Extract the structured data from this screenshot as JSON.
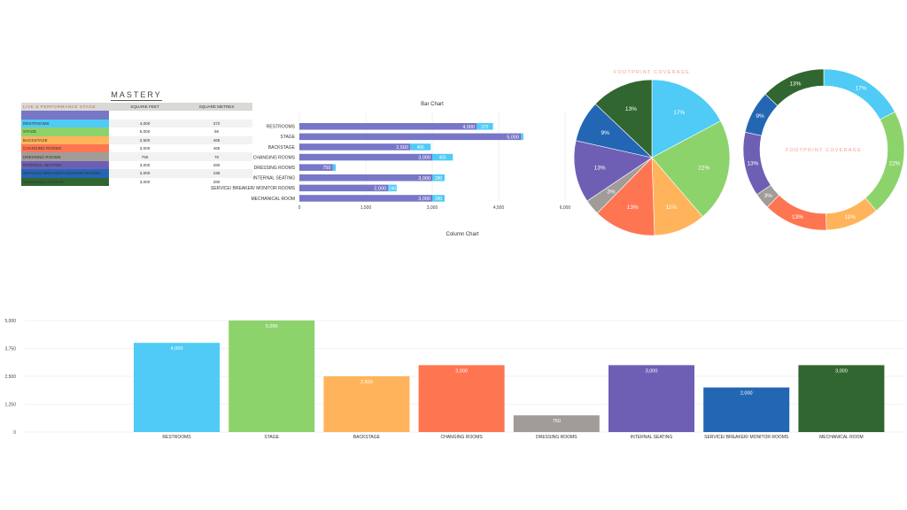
{
  "colors": {
    "restrooms": "#4fcbf6",
    "stage": "#8cd36b",
    "backstage": "#ffb45c",
    "changing_rooms": "#fe7552",
    "dressing_rooms": "#a19c97",
    "internal_seating": "#6e5fb5",
    "service": "#2367b4",
    "mechanical": "#326630",
    "bar_main": "#7776c7",
    "bar_secondary": "#4fcbf6"
  },
  "table": {
    "title": "MASTERY",
    "header": [
      "LIVE & PERFORMANCE STAGE",
      "SQUARE FEET",
      "SQUARE METRES"
    ],
    "header_color": "#7776c7",
    "rows": [
      {
        "name": "RESTROOMS",
        "sqft": "4,000",
        "sqm": "372",
        "color": "#4fcbf6"
      },
      {
        "name": "STAGE",
        "sqft": "5,000",
        "sqm": "56",
        "color": "#8cd36b"
      },
      {
        "name": "BACKSTAGE",
        "sqft": "2,500",
        "sqm": "465",
        "color": "#ffb45c"
      },
      {
        "name": "CHANGING ROOMS",
        "sqft": "3,000",
        "sqm": "465",
        "color": "#fe7552"
      },
      {
        "name": "DRESSING ROOMS",
        "sqft": "750",
        "sqm": "70",
        "color": "#a19c97"
      },
      {
        "name": "INTERNAL SEATING",
        "sqft": "3,000",
        "sqm": "280",
        "color": "#6e5fb5"
      },
      {
        "name": "SERVICE/ BREAKER/ MONITOR ROOMS",
        "sqft": "2,000",
        "sqm": "196",
        "color": "#2367b4"
      },
      {
        "name": "MECHANICAL ROOM",
        "sqft": "3,000",
        "sqm": "280",
        "color": "#326630"
      }
    ]
  },
  "chart_data": [
    {
      "type": "bar",
      "orientation": "horizontal",
      "stacked": true,
      "title": "Bar Chart",
      "subtitle": "Column Chart",
      "categories": [
        "RESTROOMS",
        "STAGE",
        "BACKSTAGE",
        "CHANGING ROOMS",
        "DRESSING ROOMS",
        "INTERNAL SEATING",
        "SERVICE/ BREAKER/ MONITOR ROOMS",
        "MECHANICAL ROOM"
      ],
      "series": [
        {
          "values": [
            4000,
            5000,
            2500,
            3000,
            750,
            3000,
            2000,
            3000
          ],
          "labels": [
            "4,000",
            "5,000",
            "2,500",
            "3,000",
            "750",
            "3,000",
            "2,000",
            "3,000"
          ]
        },
        {
          "values": [
            372,
            56,
            465,
            465,
            70,
            280,
            196,
            280
          ],
          "labels": [
            "372",
            "",
            "465",
            "465",
            "",
            "280",
            "196",
            "280"
          ]
        }
      ],
      "xlim": [
        0,
        6000
      ],
      "xticks": [
        "0",
        "1,500",
        "3,000",
        "4,500",
        "6,000"
      ],
      "grid": true
    },
    {
      "type": "pie",
      "title": "FOOTPRINT COVERAGE",
      "categories": [
        "RESTROOMS",
        "STAGE",
        "BACKSTAGE",
        "CHANGING ROOMS",
        "DRESSING ROOMS",
        "INTERNAL SEATING",
        "SERVICE/ BREAKER/ MONITOR ROOMS",
        "MECHANICAL ROOM"
      ],
      "values": [
        4000,
        5000,
        2500,
        3000,
        750,
        3000,
        2000,
        3000
      ],
      "labels": [
        "17%",
        "22%",
        "11%",
        "13%",
        "3%",
        "13%",
        "9%",
        "13%"
      ]
    },
    {
      "type": "pie",
      "donut": true,
      "title": "FOOTPRINT COVERAGE",
      "categories": [
        "RESTROOMS",
        "STAGE",
        "BACKSTAGE",
        "CHANGING ROOMS",
        "DRESSING ROOMS",
        "INTERNAL SEATING",
        "SERVICE/ BREAKER/ MONITOR ROOMS",
        "MECHANICAL ROOM"
      ],
      "values": [
        4000,
        5000,
        2500,
        3000,
        750,
        3000,
        2000,
        3000
      ],
      "labels": [
        "17%",
        "22%",
        "11%",
        "13%",
        "3%",
        "13%",
        "9%",
        "13%"
      ]
    },
    {
      "type": "bar",
      "orientation": "vertical",
      "categories": [
        "RESTROOMS",
        "STAGE",
        "BACKSTAGE",
        "CHANGING ROOMS",
        "DRESSING ROOMS",
        "INTERNAL SEATING",
        "SERVICE/ BREAKER/ MONITOR ROOMS",
        "MECHANICAL ROOM"
      ],
      "values": [
        4000,
        5000,
        2500,
        3000,
        750,
        3000,
        2000,
        3000
      ],
      "labels": [
        "4,000",
        "5,000",
        "2,500",
        "3,000",
        "750",
        "3,000",
        "2,000",
        "3,000"
      ],
      "ylim": [
        0,
        5000
      ],
      "yticks": [
        "0",
        "1,250",
        "2,500",
        "3,750",
        "5,000"
      ],
      "grid": true
    }
  ]
}
